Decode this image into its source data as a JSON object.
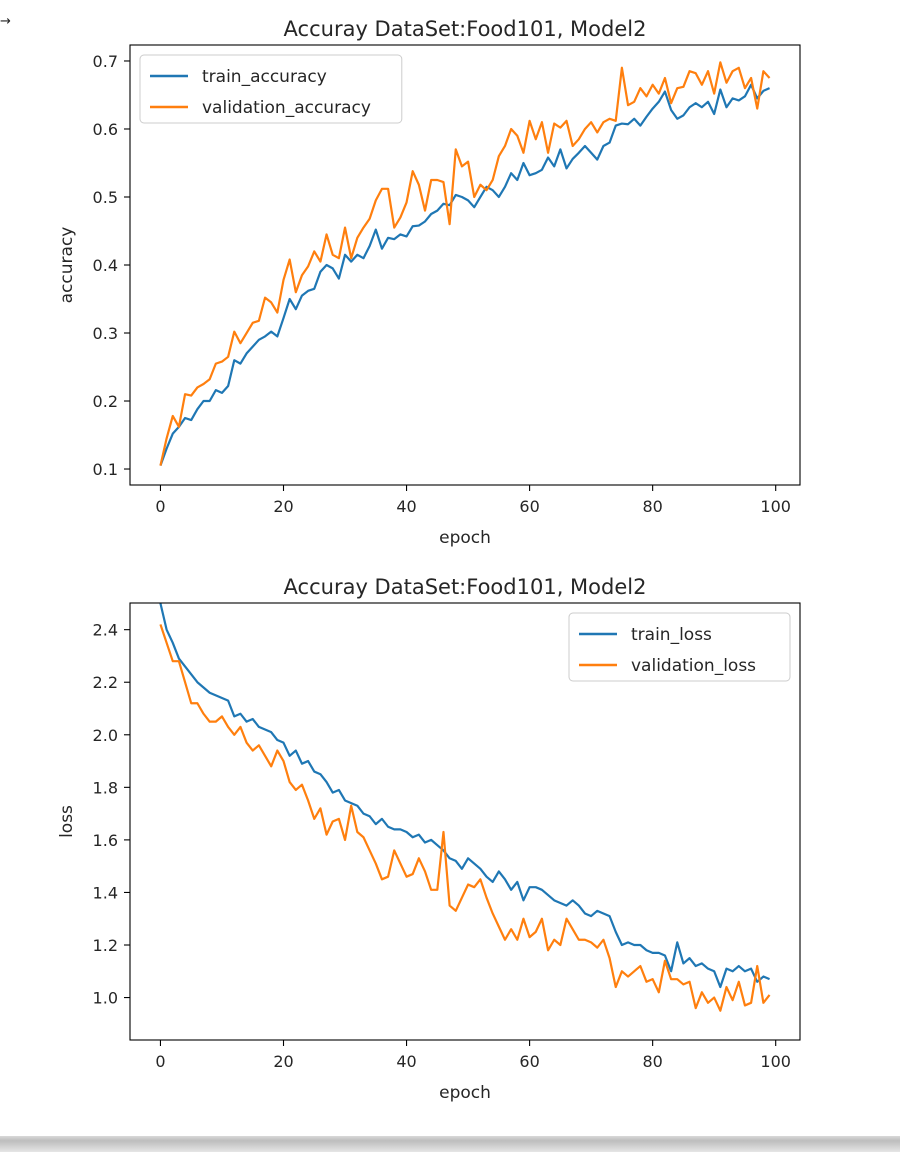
{
  "arrow": "→",
  "chart_data": [
    {
      "type": "line",
      "title": "Accuray DataSet:Food101, Model2",
      "xlabel": "epoch",
      "ylabel": "accuracy",
      "xlim": [
        -4.95,
        103.95
      ],
      "ylim": [
        0.0765,
        0.7235
      ],
      "xticks": [
        0,
        20,
        40,
        60,
        80,
        100
      ],
      "yticks": [
        0.1,
        0.2,
        0.3,
        0.4,
        0.5,
        0.6,
        0.7
      ],
      "legend_position": "upper-left",
      "grid": false,
      "series": [
        {
          "name": "train_accuracy",
          "color": "#1f77b4",
          "values": [
            0.105,
            0.13,
            0.152,
            0.162,
            0.175,
            0.172,
            0.188,
            0.2,
            0.2,
            0.216,
            0.212,
            0.222,
            0.26,
            0.255,
            0.27,
            0.28,
            0.29,
            0.295,
            0.302,
            0.295,
            0.322,
            0.35,
            0.335,
            0.355,
            0.362,
            0.365,
            0.39,
            0.4,
            0.395,
            0.38,
            0.415,
            0.405,
            0.415,
            0.41,
            0.428,
            0.452,
            0.424,
            0.44,
            0.438,
            0.445,
            0.442,
            0.457,
            0.458,
            0.464,
            0.475,
            0.48,
            0.49,
            0.488,
            0.503,
            0.5,
            0.495,
            0.485,
            0.5,
            0.515,
            0.51,
            0.5,
            0.515,
            0.535,
            0.525,
            0.55,
            0.532,
            0.535,
            0.54,
            0.558,
            0.545,
            0.57,
            0.542,
            0.556,
            0.565,
            0.575,
            0.565,
            0.555,
            0.575,
            0.58,
            0.605,
            0.608,
            0.607,
            0.615,
            0.605,
            0.618,
            0.63,
            0.64,
            0.655,
            0.628,
            0.615,
            0.62,
            0.632,
            0.638,
            0.632,
            0.64,
            0.622,
            0.658,
            0.632,
            0.645,
            0.642,
            0.648,
            0.665,
            0.645,
            0.656,
            0.66
          ]
        },
        {
          "name": "validation_accuracy",
          "color": "#ff7f0e",
          "values": [
            0.105,
            0.145,
            0.178,
            0.162,
            0.21,
            0.208,
            0.22,
            0.225,
            0.232,
            0.255,
            0.258,
            0.265,
            0.302,
            0.285,
            0.3,
            0.315,
            0.318,
            0.352,
            0.345,
            0.33,
            0.378,
            0.408,
            0.36,
            0.385,
            0.398,
            0.42,
            0.405,
            0.445,
            0.415,
            0.41,
            0.455,
            0.41,
            0.44,
            0.455,
            0.468,
            0.495,
            0.512,
            0.512,
            0.455,
            0.47,
            0.492,
            0.538,
            0.518,
            0.48,
            0.525,
            0.525,
            0.522,
            0.46,
            0.57,
            0.545,
            0.552,
            0.5,
            0.518,
            0.51,
            0.525,
            0.56,
            0.575,
            0.6,
            0.59,
            0.565,
            0.612,
            0.585,
            0.61,
            0.565,
            0.608,
            0.602,
            0.612,
            0.575,
            0.585,
            0.6,
            0.61,
            0.595,
            0.61,
            0.615,
            0.612,
            0.69,
            0.635,
            0.64,
            0.66,
            0.648,
            0.665,
            0.652,
            0.675,
            0.638,
            0.66,
            0.662,
            0.685,
            0.682,
            0.665,
            0.685,
            0.652,
            0.698,
            0.668,
            0.685,
            0.69,
            0.66,
            0.675,
            0.63,
            0.685,
            0.675
          ]
        }
      ]
    },
    {
      "type": "line",
      "title": "Accuray DataSet:Food101, Model2",
      "xlabel": "epoch",
      "ylabel": "loss",
      "xlim": [
        -4.95,
        103.95
      ],
      "ylim": [
        0.8385,
        2.5015
      ],
      "xticks": [
        0,
        20,
        40,
        60,
        80,
        100
      ],
      "yticks": [
        1.0,
        1.2,
        1.4,
        1.6,
        1.8,
        2.0,
        2.2,
        2.4
      ],
      "legend_position": "upper-right",
      "grid": false,
      "series": [
        {
          "name": "train_loss",
          "color": "#1f77b4",
          "values": [
            2.5,
            2.4,
            2.35,
            2.29,
            2.26,
            2.23,
            2.2,
            2.18,
            2.16,
            2.15,
            2.14,
            2.13,
            2.07,
            2.08,
            2.05,
            2.06,
            2.03,
            2.02,
            2.01,
            1.98,
            1.97,
            1.92,
            1.94,
            1.89,
            1.9,
            1.86,
            1.85,
            1.82,
            1.78,
            1.79,
            1.75,
            1.74,
            1.73,
            1.7,
            1.69,
            1.66,
            1.68,
            1.65,
            1.64,
            1.64,
            1.63,
            1.61,
            1.62,
            1.59,
            1.6,
            1.58,
            1.56,
            1.53,
            1.52,
            1.49,
            1.53,
            1.51,
            1.49,
            1.46,
            1.44,
            1.48,
            1.45,
            1.41,
            1.44,
            1.37,
            1.42,
            1.42,
            1.41,
            1.39,
            1.37,
            1.36,
            1.35,
            1.37,
            1.35,
            1.32,
            1.31,
            1.33,
            1.32,
            1.31,
            1.25,
            1.2,
            1.21,
            1.2,
            1.2,
            1.18,
            1.17,
            1.17,
            1.16,
            1.1,
            1.21,
            1.13,
            1.15,
            1.12,
            1.13,
            1.11,
            1.1,
            1.04,
            1.11,
            1.1,
            1.12,
            1.1,
            1.11,
            1.06,
            1.08,
            1.07
          ]
        },
        {
          "name": "validation_loss",
          "color": "#ff7f0e",
          "values": [
            2.42,
            2.35,
            2.28,
            2.28,
            2.2,
            2.12,
            2.12,
            2.08,
            2.05,
            2.05,
            2.07,
            2.03,
            2.0,
            2.03,
            1.97,
            1.94,
            1.96,
            1.92,
            1.88,
            1.94,
            1.9,
            1.82,
            1.79,
            1.81,
            1.75,
            1.68,
            1.72,
            1.62,
            1.67,
            1.68,
            1.6,
            1.73,
            1.63,
            1.61,
            1.56,
            1.51,
            1.45,
            1.46,
            1.56,
            1.51,
            1.46,
            1.47,
            1.53,
            1.48,
            1.41,
            1.41,
            1.63,
            1.35,
            1.33,
            1.38,
            1.43,
            1.42,
            1.45,
            1.38,
            1.32,
            1.27,
            1.22,
            1.26,
            1.22,
            1.3,
            1.23,
            1.25,
            1.3,
            1.18,
            1.22,
            1.2,
            1.3,
            1.26,
            1.22,
            1.22,
            1.21,
            1.19,
            1.22,
            1.15,
            1.04,
            1.1,
            1.08,
            1.1,
            1.12,
            1.06,
            1.07,
            1.02,
            1.14,
            1.07,
            1.07,
            1.05,
            1.06,
            0.96,
            1.02,
            0.98,
            1.0,
            0.95,
            1.04,
            0.99,
            1.06,
            0.97,
            0.98,
            1.12,
            0.98,
            1.01
          ]
        }
      ]
    }
  ]
}
